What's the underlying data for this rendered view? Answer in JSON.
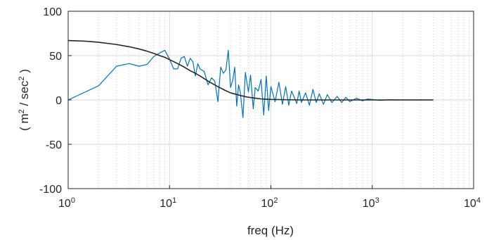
{
  "chart_data": {
    "type": "line",
    "xscale": "log",
    "xlabel": "freq (Hz)",
    "ylabel": "( m^2 / sec^2 )",
    "ylabel_parts": [
      "( m",
      "2",
      " / sec",
      "2",
      " )"
    ],
    "xlim": [
      1,
      10000
    ],
    "ylim": [
      -100,
      100
    ],
    "x_ticks": [
      {
        "value": 1,
        "base": "10",
        "exp": "0"
      },
      {
        "value": 10,
        "base": "10",
        "exp": "1"
      },
      {
        "value": 100,
        "base": "10",
        "exp": "2"
      },
      {
        "value": 1000,
        "base": "10",
        "exp": "3"
      },
      {
        "value": 10000,
        "base": "10",
        "exp": "4"
      }
    ],
    "y_ticks": [
      100,
      50,
      0,
      -50,
      -100
    ],
    "grid": true,
    "colors": {
      "spectrum": "#0072BD",
      "fit": "#262626",
      "grid": "#cccccc",
      "axis": "#262626"
    },
    "series": [
      {
        "color": "#0072BD",
        "x": [
          1,
          2,
          3,
          4,
          5,
          6,
          7,
          8,
          9,
          10,
          11,
          12,
          13,
          14,
          15,
          16,
          17,
          18,
          19,
          20,
          22,
          24,
          26,
          28,
          30,
          32,
          34,
          36,
          38,
          40,
          42,
          44,
          46,
          48,
          50,
          53,
          56,
          60,
          63,
          67,
          70,
          75,
          80,
          85,
          90,
          95,
          100,
          110,
          120,
          130,
          140,
          150,
          160,
          170,
          180,
          190,
          200,
          220,
          240,
          260,
          280,
          300,
          330,
          360,
          400,
          450,
          500,
          550,
          600,
          700,
          800,
          900,
          1000,
          1200,
          1500,
          2000,
          2500,
          3000,
          4000
        ],
        "y": [
          0,
          16,
          38,
          41,
          38,
          40,
          49,
          53,
          56,
          46,
          35,
          35,
          47,
          49,
          38,
          47,
          43,
          27,
          41,
          35,
          32,
          17,
          25,
          21,
          -2,
          37,
          30,
          34,
          56,
          14,
          22,
          37,
          -7,
          17,
          8,
          -20,
          31,
          9,
          28,
          -10,
          14,
          10,
          23,
          -17,
          27,
          -12,
          15,
          -2,
          20,
          -5,
          15,
          -6,
          10,
          3,
          -4,
          10,
          -3,
          8,
          -6,
          12,
          -3,
          7,
          -5,
          6,
          -3,
          4,
          -3,
          3,
          -2,
          2,
          -1,
          1,
          0.5,
          -0.5,
          0.3,
          0,
          0,
          0,
          0
        ]
      },
      {
        "color": "#262626",
        "x": [
          1,
          1.5,
          2,
          3,
          4,
          5,
          6,
          7,
          8,
          9,
          10,
          12,
          14,
          16,
          18,
          20,
          25,
          30,
          35,
          40,
          50,
          60,
          70,
          80,
          100,
          150,
          200,
          500,
          1000,
          4000
        ],
        "y": [
          67,
          66.2,
          65,
          62.5,
          60,
          57.5,
          55,
          52.5,
          50,
          48,
          45.5,
          41,
          37,
          33,
          30,
          27,
          20,
          15,
          11,
          8,
          5,
          3,
          2,
          1.2,
          0.6,
          0.2,
          0,
          0,
          0,
          0
        ]
      }
    ]
  }
}
